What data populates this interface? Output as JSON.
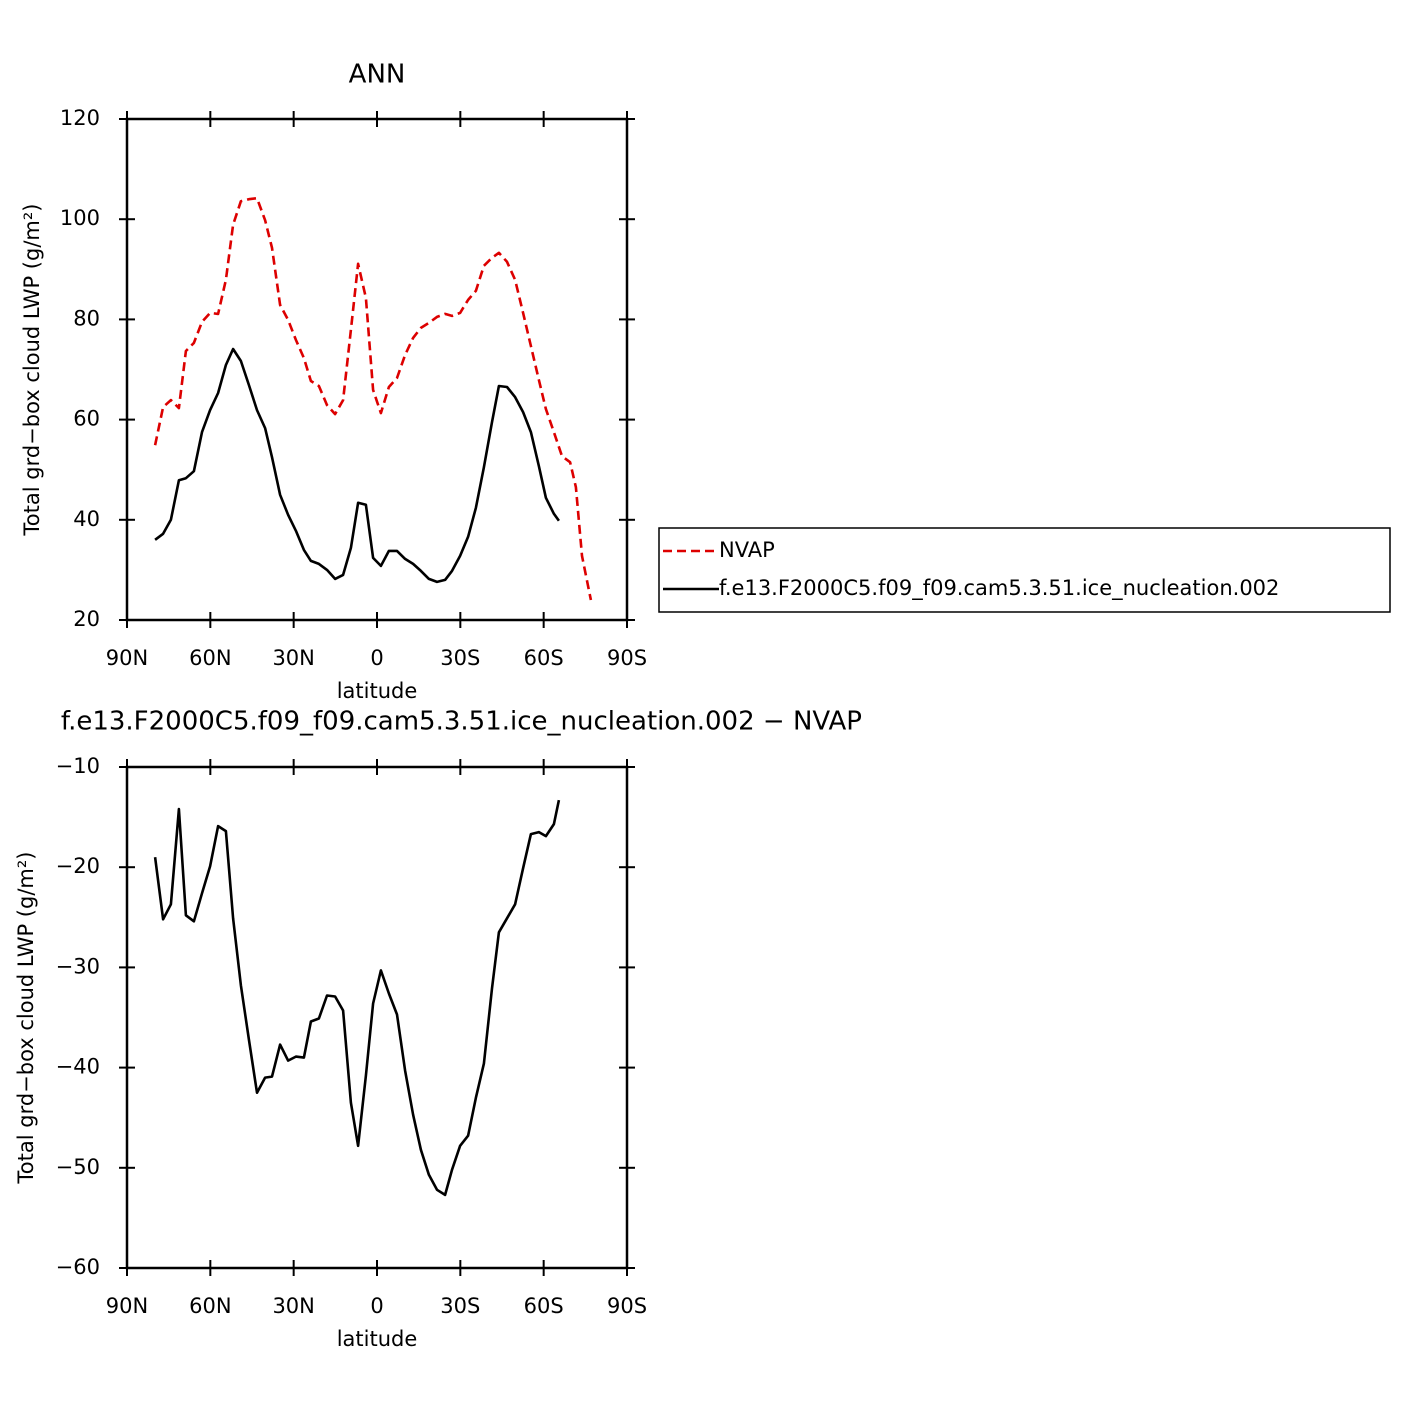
{
  "chart_data": [
    {
      "type": "line",
      "title": "ANN",
      "xlabel": "latitude",
      "ylabel": "Total grd−box cloud LWP (g/m²)",
      "xlim": [
        90,
        -90
      ],
      "xticks": [
        {
          "value": 90,
          "label": "90N"
        },
        {
          "value": 60,
          "label": "60N"
        },
        {
          "value": 30,
          "label": "30N"
        },
        0,
        {
          "value": -30,
          "label": "30S"
        },
        {
          "value": -60,
          "label": "60S"
        },
        {
          "value": -90,
          "label": "90S"
        }
      ],
      "ylim": [
        20,
        120
      ],
      "yticks": [
        20,
        40,
        60,
        80,
        100,
        120
      ],
      "legend": "right",
      "series": [
        {
          "name": "NVAP",
          "color": "#dd0000",
          "line_style": "dashed",
          "x": [
            79.9,
            77.0,
            74.2,
            71.3,
            68.8,
            65.9,
            63.0,
            60.1,
            57.2,
            54.4,
            51.8,
            49.0,
            46.1,
            43.2,
            40.3,
            37.8,
            34.9,
            32.0,
            29.2,
            26.3,
            23.8,
            20.9,
            18.0,
            15.1,
            12.2,
            9.4,
            6.8,
            4.0,
            1.4,
            -1.4,
            -4.3,
            -7.2,
            -10.1,
            -13.0,
            -15.8,
            -18.7,
            -21.6,
            -24.5,
            -27.0,
            -29.9,
            -32.8,
            -35.6,
            -38.5,
            -41.4,
            -43.9,
            -46.8,
            -49.7,
            -52.6,
            -55.4,
            -58.3,
            -60.8,
            -63.7,
            -66.6,
            -69.5,
            -71.6,
            -73.8,
            -77.0
          ],
          "values": [
            54.9,
            62.5,
            63.9,
            62.3,
            73.7,
            75.3,
            79.5,
            81.3,
            81.1,
            87.9,
            98.9,
            103.6,
            104.0,
            104.2,
            99.8,
            94.3,
            82.9,
            79.9,
            75.9,
            72.3,
            67.7,
            66.7,
            62.9,
            61.1,
            63.9,
            77.9,
            91.1,
            84.3,
            65.9,
            61.3,
            66.5,
            68.3,
            72.9,
            76.3,
            78.3,
            79.3,
            80.5,
            81.1,
            80.7,
            81.3,
            83.9,
            85.7,
            90.7,
            92.3,
            93.3,
            91.5,
            87.9,
            81.3,
            74.7,
            67.9,
            62.1,
            57.5,
            52.7,
            51.5,
            46.5,
            32.8,
            24.0
          ]
        },
        {
          "name": "f.e13.F2000C5.f09_f09.cam5.3.51.ice_nucleation.002",
          "color": "#000000",
          "line_style": "solid",
          "x": [
            79.9,
            77.0,
            74.2,
            71.3,
            68.8,
            65.9,
            63.0,
            60.1,
            57.2,
            54.4,
            51.8,
            49.0,
            46.1,
            43.2,
            40.3,
            37.8,
            34.9,
            32.0,
            29.2,
            26.3,
            23.8,
            20.9,
            18.0,
            15.1,
            12.2,
            9.4,
            6.8,
            4.0,
            1.4,
            -1.4,
            -4.3,
            -7.2,
            -10.1,
            -13.0,
            -15.8,
            -18.7,
            -21.6,
            -24.5,
            -27.0,
            -29.9,
            -32.8,
            -35.6,
            -38.5,
            -41.4,
            -43.9,
            -46.8,
            -49.7,
            -52.6,
            -55.4,
            -58.3,
            -60.8,
            -63.7,
            -65.5
          ],
          "values": [
            36.0,
            37.2,
            40.0,
            47.9,
            48.3,
            49.7,
            57.5,
            61.9,
            65.3,
            70.9,
            74.1,
            71.7,
            66.9,
            61.9,
            58.3,
            52.5,
            45.0,
            41.0,
            37.8,
            34.0,
            31.8,
            31.2,
            30.0,
            28.2,
            29.0,
            34.4,
            43.4,
            43.0,
            32.4,
            30.8,
            33.8,
            33.8,
            32.2,
            31.2,
            29.8,
            28.2,
            27.6,
            28.0,
            29.8,
            32.8,
            36.6,
            42.4,
            50.5,
            59.5,
            66.7,
            66.5,
            64.5,
            61.5,
            57.5,
            50.7,
            44.4,
            41.2,
            39.8
          ]
        }
      ]
    },
    {
      "type": "line",
      "title": "f.e13.F2000C5.f09_f09.cam5.3.51.ice_nucleation.002 − NVAP",
      "xlabel": "latitude",
      "ylabel": "Total grd−box cloud LWP (g/m²)",
      "xlim": [
        90,
        -90
      ],
      "xticks": [
        {
          "value": 90,
          "label": "90N"
        },
        {
          "value": 60,
          "label": "60N"
        },
        {
          "value": 30,
          "label": "30N"
        },
        0,
        {
          "value": -30,
          "label": "30S"
        },
        {
          "value": -60,
          "label": "60S"
        },
        {
          "value": -90,
          "label": "90S"
        }
      ],
      "ylim": [
        -60,
        -10
      ],
      "yticks": [
        {
          "value": -60,
          "label": "−60"
        },
        {
          "value": -50,
          "label": "−50"
        },
        {
          "value": -40,
          "label": "−40"
        },
        {
          "value": -30,
          "label": "−30"
        },
        {
          "value": -20,
          "label": "−20"
        },
        {
          "value": -10,
          "label": "−10"
        }
      ],
      "series": [
        {
          "color": "#000000",
          "line_style": "solid",
          "x": [
            79.9,
            77.0,
            74.2,
            71.3,
            68.8,
            65.9,
            63.0,
            60.1,
            57.2,
            54.4,
            51.8,
            49.0,
            46.1,
            43.2,
            40.3,
            37.8,
            34.9,
            32.0,
            29.2,
            26.3,
            23.8,
            20.9,
            18.0,
            15.1,
            12.2,
            9.4,
            6.8,
            4.0,
            1.4,
            -1.4,
            -4.3,
            -7.2,
            -10.1,
            -13.0,
            -15.8,
            -18.7,
            -21.6,
            -24.5,
            -27.0,
            -29.9,
            -32.8,
            -35.6,
            -38.5,
            -41.4,
            -43.9,
            -46.8,
            -49.7,
            -52.6,
            -55.4,
            -58.3,
            -60.8,
            -63.7,
            -65.5
          ],
          "values": [
            -19.0,
            -25.2,
            -23.7,
            -14.2,
            -24.8,
            -25.4,
            -22.6,
            -19.9,
            -15.9,
            -16.4,
            -25.1,
            -31.8,
            -37.2,
            -42.5,
            -41.0,
            -40.9,
            -37.7,
            -39.3,
            -38.9,
            -39.0,
            -35.4,
            -35.1,
            -32.8,
            -32.9,
            -34.3,
            -43.5,
            -47.8,
            -40.8,
            -33.6,
            -30.3,
            -32.6,
            -34.7,
            -40.3,
            -44.7,
            -48.2,
            -50.7,
            -52.2,
            -52.7,
            -50.2,
            -47.8,
            -46.8,
            -43.0,
            -39.6,
            -32.1,
            -26.5,
            -25.1,
            -23.7,
            -20.1,
            -16.7,
            -16.5,
            -16.9,
            -15.7,
            -13.3
          ]
        }
      ]
    }
  ]
}
